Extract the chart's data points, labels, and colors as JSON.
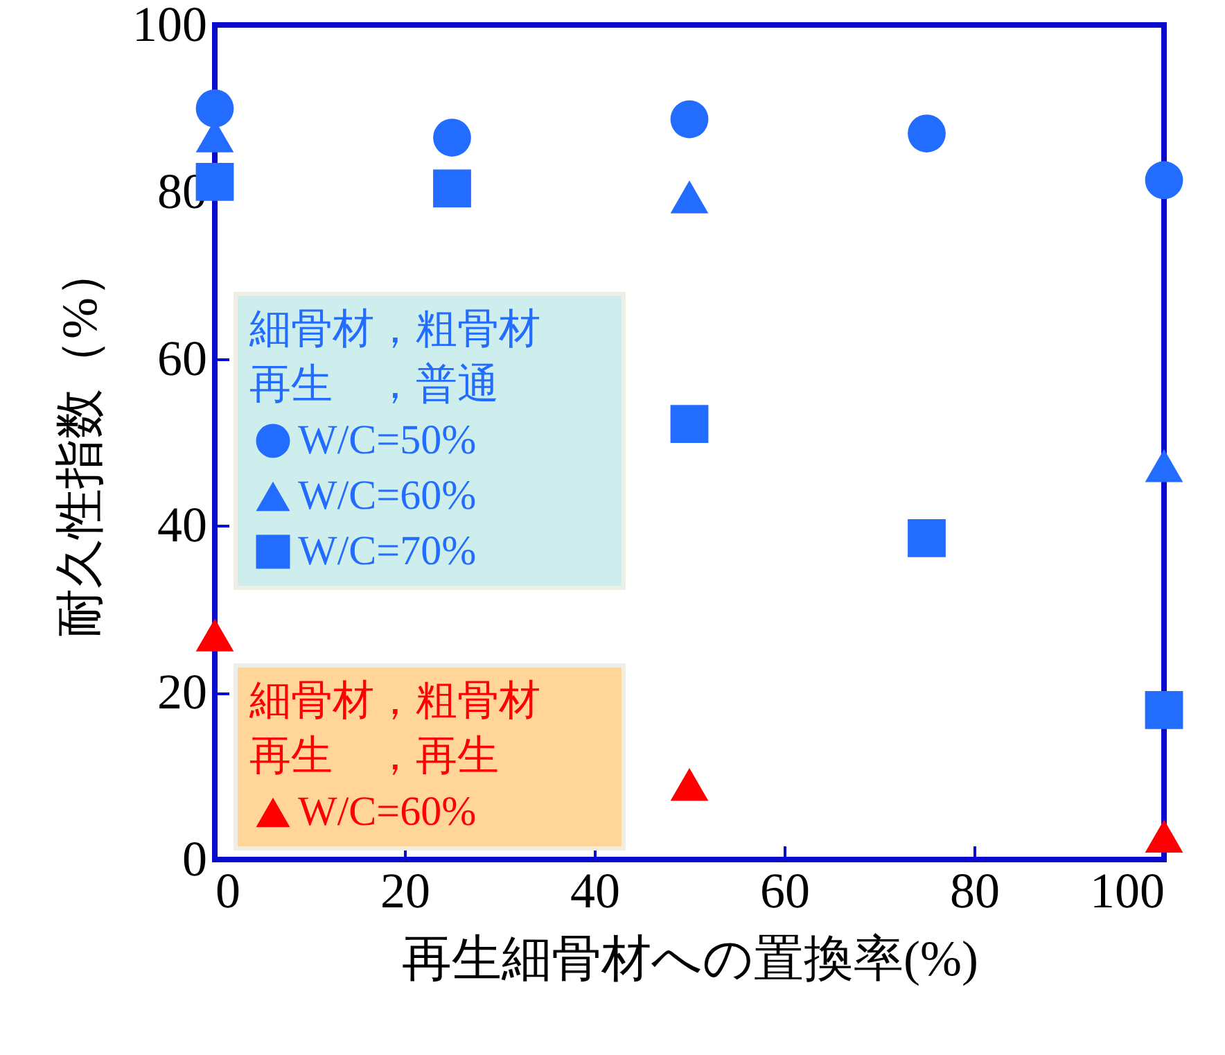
{
  "chart_data": {
    "type": "scatter",
    "xlabel": "再生細骨材への置換率(%)",
    "ylabel": "耐久性指数（%）",
    "xlim": [
      0,
      100
    ],
    "ylim": [
      0,
      100
    ],
    "xticks": [
      0,
      20,
      40,
      60,
      80,
      100
    ],
    "yticks": [
      0,
      20,
      40,
      60,
      80,
      100
    ],
    "grid": false,
    "legend": "left",
    "annotations": [
      "細骨材，粗骨材",
      "再生　，普通",
      "細骨材，粗骨材",
      "再生　，再生"
    ],
    "series": [
      {
        "name": "W/C=50%",
        "color": "#226cff",
        "marker": "circle",
        "x": [
          0,
          25,
          50,
          75,
          100
        ],
        "values": [
          90,
          86.5,
          88.7,
          87,
          81.4
        ]
      },
      {
        "name": "W/C=60%",
        "color": "#226cff",
        "marker": "triangle",
        "x": [
          0,
          50,
          100
        ],
        "values": [
          86.7,
          79.4,
          47.2
        ]
      },
      {
        "name": "W/C=70%",
        "color": "#226cff",
        "marker": "square",
        "x": [
          0,
          25,
          50,
          75,
          100
        ],
        "values": [
          81.2,
          80.4,
          52.2,
          38.5,
          17.9
        ]
      },
      {
        "name": "W/C=60%",
        "color": "#ff0000",
        "marker": "triangle",
        "x": [
          0,
          50,
          100
        ],
        "values": [
          26.9,
          9,
          2.8
        ]
      }
    ]
  }
}
